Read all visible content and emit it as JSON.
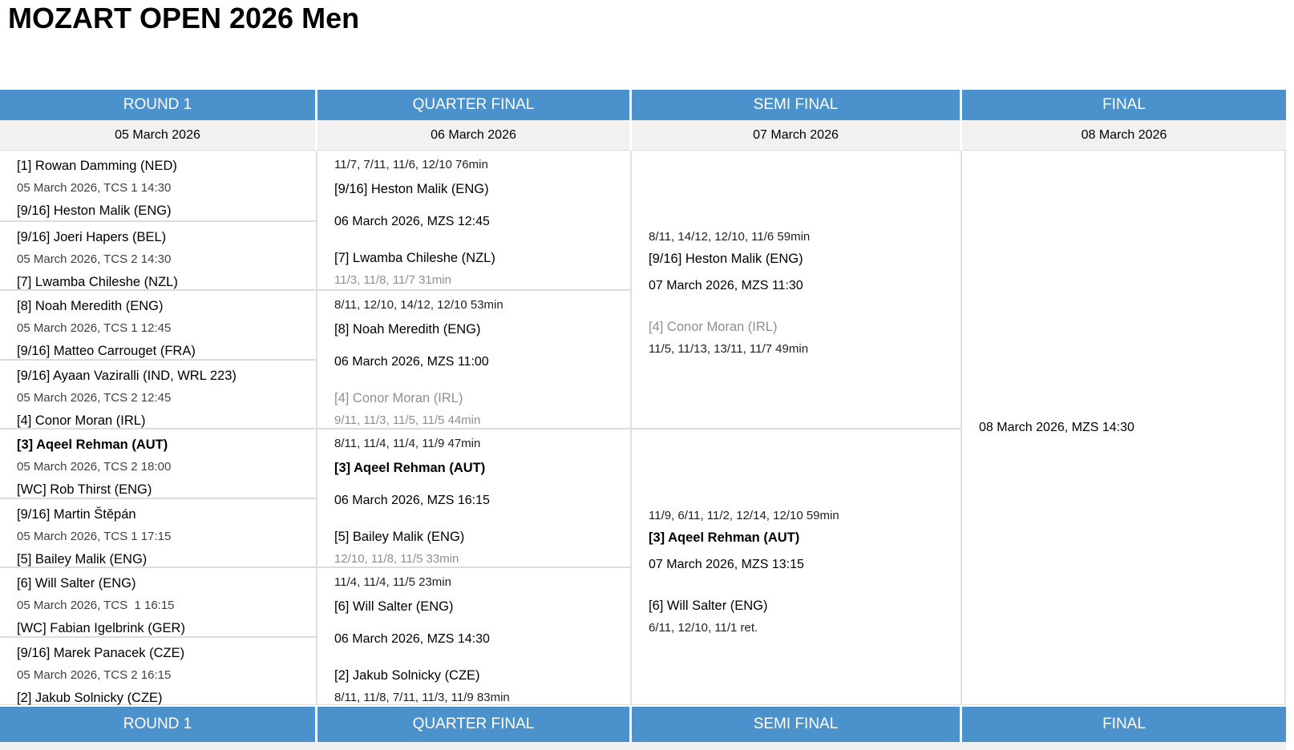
{
  "title": "MOZART OPEN 2026 Men",
  "colors": {
    "header_bg": "#4B92CC",
    "header_text": "#FFFFFF",
    "date_row_bg": "#F1F1F1",
    "divider": "#DCDCDC",
    "muted_text": "#8F8F8F",
    "schedule_text_round1": "#3F3F3F",
    "bottom_strip": "#F0F0F0"
  },
  "rounds": [
    {
      "name": "ROUND 1",
      "date": "05 March 2026",
      "type": "r1",
      "blocks": [
        {
          "lines": [
            {
              "text": "[1] Rowan Damming (NED)",
              "role": "player"
            },
            {
              "text": "05 March 2026, TCS 1 14:30",
              "role": "schedule"
            },
            {
              "text": "[9/16] Heston Malik (ENG)",
              "role": "player"
            }
          ]
        },
        {
          "lines": [
            {
              "text": "[9/16] Joeri Hapers (BEL)",
              "role": "player"
            },
            {
              "text": "05 March 2026, TCS 2 14:30",
              "role": "schedule"
            },
            {
              "text": "[7] Lwamba Chileshe (NZL)",
              "role": "player"
            }
          ]
        },
        {
          "lines": [
            {
              "text": "[8] Noah Meredith (ENG)",
              "role": "player"
            },
            {
              "text": "05 March 2026, TCS 1 12:45",
              "role": "schedule"
            },
            {
              "text": "[9/16] Matteo Carrouget (FRA)",
              "role": "player"
            }
          ]
        },
        {
          "lines": [
            {
              "text": "[9/16] Ayaan Vaziralli (IND, WRL 223)",
              "role": "player"
            },
            {
              "text": "05 March 2026, TCS 2 12:45",
              "role": "schedule"
            },
            {
              "text": "[4] Conor Moran (IRL)",
              "role": "player"
            }
          ]
        },
        {
          "lines": [
            {
              "text": "[3] Aqeel Rehman (AUT)",
              "role": "player",
              "bold": true
            },
            {
              "text": "05 March 2026, TCS 2 18:00",
              "role": "schedule"
            },
            {
              "text": "[WC] Rob Thirst (ENG)",
              "role": "player"
            }
          ]
        },
        {
          "lines": [
            {
              "text": "[9/16] Martin Štěpán",
              "role": "player"
            },
            {
              "text": "05 March 2026, TCS 1 17:15",
              "role": "schedule"
            },
            {
              "text": "[5] Bailey Malik (ENG)",
              "role": "player"
            }
          ]
        },
        {
          "lines": [
            {
              "text": "[6] Will Salter (ENG)",
              "role": "player"
            },
            {
              "text": "05 March 2026, TCS  1 16:15",
              "role": "schedule"
            },
            {
              "text": "[WC] Fabian Igelbrink (GER)",
              "role": "player"
            }
          ]
        },
        {
          "lines": [
            {
              "text": "[9/16] Marek Panacek (CZE)",
              "role": "player"
            },
            {
              "text": "05 March 2026, TCS 2 16:15",
              "role": "schedule"
            },
            {
              "text": "[2] Jakub Solnicky (CZE)",
              "role": "player"
            }
          ]
        }
      ]
    },
    {
      "name": "QUARTER FINAL",
      "date": "06 March 2026",
      "type": "qf",
      "blocks": [
        {
          "lines": [
            {
              "text": "11/7, 7/11, 11/6, 12/10 76min",
              "role": "score"
            },
            {
              "text": "[9/16] Heston Malik (ENG)",
              "role": "player"
            },
            {
              "text": "06 March 2026, MZS 12:45",
              "role": "schedule"
            },
            {
              "text": "[7] Lwamba Chileshe (NZL)",
              "role": "player"
            },
            {
              "text": "11/3, 11/8, 11/7 31min",
              "role": "score",
              "muted": true
            }
          ]
        },
        {
          "lines": [
            {
              "text": "8/11, 12/10, 14/12, 12/10 53min",
              "role": "score"
            },
            {
              "text": "[8] Noah Meredith (ENG)",
              "role": "player"
            },
            {
              "text": "06 March 2026, MZS 11:00",
              "role": "schedule"
            },
            {
              "text": "[4] Conor Moran (IRL)",
              "role": "player",
              "muted": true
            },
            {
              "text": "9/11, 11/3, 11/5, 11/5 44min",
              "role": "score",
              "muted": true
            }
          ]
        },
        {
          "lines": [
            {
              "text": "8/11, 11/4, 11/4, 11/9 47min",
              "role": "score"
            },
            {
              "text": "[3] Aqeel Rehman (AUT)",
              "role": "player",
              "bold": true
            },
            {
              "text": "06 March 2026, MZS 16:15",
              "role": "schedule"
            },
            {
              "text": "[5] Bailey Malik (ENG)",
              "role": "player"
            },
            {
              "text": "12/10, 11/8, 11/5 33min",
              "role": "score",
              "muted": true
            }
          ]
        },
        {
          "lines": [
            {
              "text": "11/4, 11/4, 11/5 23min",
              "role": "score"
            },
            {
              "text": "[6] Will Salter (ENG)",
              "role": "player"
            },
            {
              "text": "06 March 2026, MZS 14:30",
              "role": "schedule"
            },
            {
              "text": "[2] Jakub Solnicky (CZE)",
              "role": "player"
            },
            {
              "text": "8/11, 11/8, 7/11, 11/3, 11/9 83min",
              "role": "score"
            }
          ]
        }
      ]
    },
    {
      "name": "SEMI FINAL",
      "date": "07 March 2026",
      "type": "sf",
      "blocks": [
        {
          "lines": [
            {
              "text": "8/11, 14/12, 12/10, 11/6 59min",
              "role": "score"
            },
            {
              "text": "[9/16] Heston Malik (ENG)",
              "role": "player"
            },
            {
              "text": "07 March 2026, MZS 11:30",
              "role": "schedule"
            },
            {
              "text": "[4] Conor Moran (IRL)",
              "role": "player",
              "muted": true
            },
            {
              "text": "11/5, 11/13, 13/11, 11/7 49min",
              "role": "score"
            }
          ]
        },
        {
          "lines": [
            {
              "text": "11/9, 6/11, 11/2, 12/14, 12/10 59min",
              "role": "score"
            },
            {
              "text": "[3] Aqeel Rehman (AUT)",
              "role": "player",
              "bold": true
            },
            {
              "text": "07 March 2026, MZS 13:15",
              "role": "schedule"
            },
            {
              "text": "[6] Will Salter (ENG)",
              "role": "player"
            },
            {
              "text": "6/11, 12/10, 11/1 ret.",
              "role": "score"
            }
          ]
        }
      ]
    },
    {
      "name": "FINAL",
      "date": "08 March 2026",
      "type": "f",
      "blocks": [
        {
          "lines": [
            {
              "text": "08 March 2026, MZS 14:30",
              "role": "schedule"
            }
          ]
        }
      ]
    }
  ],
  "footer_labels": [
    "ROUND 1",
    "QUARTER FINAL",
    "SEMI FINAL",
    "FINAL"
  ]
}
